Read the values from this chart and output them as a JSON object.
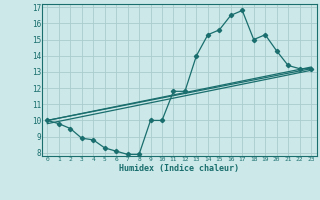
{
  "title": "",
  "xlabel": "Humidex (Indice chaleur)",
  "bg_color": "#cce8e8",
  "grid_color": "#aacccc",
  "line_color": "#1a6e6e",
  "xlim": [
    -0.5,
    23.5
  ],
  "ylim": [
    7.8,
    17.2
  ],
  "xticks": [
    0,
    1,
    2,
    3,
    4,
    5,
    6,
    7,
    8,
    9,
    10,
    11,
    12,
    13,
    14,
    15,
    16,
    17,
    18,
    19,
    20,
    21,
    22,
    23
  ],
  "yticks": [
    8,
    9,
    10,
    11,
    12,
    13,
    14,
    15,
    16,
    17
  ],
  "line1_x": [
    0,
    1,
    2,
    3,
    4,
    5,
    6,
    7,
    8,
    9,
    10,
    11,
    12,
    13,
    14,
    15,
    16,
    17,
    18,
    19,
    20,
    21,
    22,
    23
  ],
  "line1_y": [
    10.0,
    9.8,
    9.5,
    8.9,
    8.8,
    8.3,
    8.1,
    7.9,
    7.9,
    10.0,
    10.0,
    11.8,
    11.8,
    14.0,
    15.3,
    15.6,
    16.5,
    16.8,
    15.0,
    15.3,
    14.3,
    13.4,
    13.2,
    13.2
  ],
  "line2_x": [
    0,
    23
  ],
  "line2_y": [
    10.0,
    13.2
  ],
  "line3_x": [
    0,
    23
  ],
  "line3_y": [
    10.0,
    13.3
  ],
  "line4_x": [
    0,
    23
  ],
  "line4_y": [
    9.8,
    13.1
  ],
  "marker": "D",
  "markersize": 2.2,
  "linewidth": 0.9
}
